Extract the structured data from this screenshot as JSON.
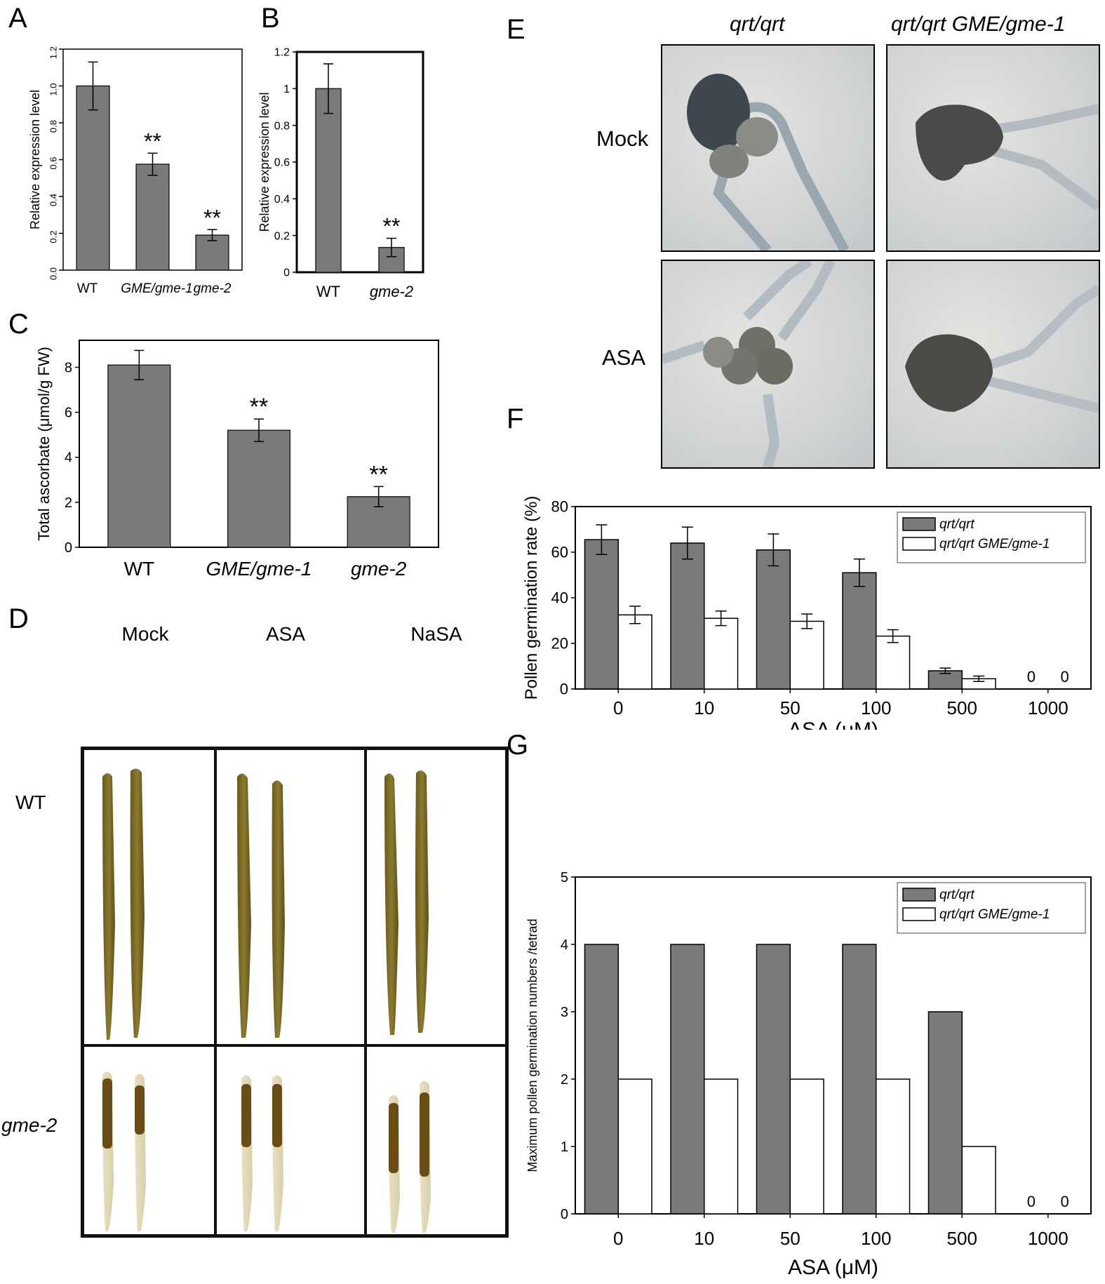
{
  "panels": {
    "A": {
      "letter": "A"
    },
    "B": {
      "letter": "B"
    },
    "C": {
      "letter": "C"
    },
    "D": {
      "letter": "D",
      "columns": [
        "Mock",
        "ASA",
        "NaSA"
      ],
      "rows": [
        "WT",
        "gme-2"
      ]
    },
    "E": {
      "letter": "E",
      "columns": [
        "qrt/qrt",
        "qrt/qrt GME/gme-1"
      ],
      "rows": [
        "Mock",
        "ASA"
      ]
    },
    "F": {
      "letter": "F"
    },
    "G": {
      "letter": "G"
    }
  },
  "chart_data": [
    {
      "id": "A",
      "type": "bar",
      "categories": [
        "WT",
        "GME/gme-1",
        "gme-2"
      ],
      "italic_categories": [
        false,
        true,
        true
      ],
      "values": [
        1.0,
        0.575,
        0.19
      ],
      "errors": [
        0.13,
        0.06,
        0.03
      ],
      "significance": [
        "",
        "**",
        "**"
      ],
      "ylabel": "Relative expression level",
      "ylim": [
        0,
        1.2
      ],
      "yticks": [
        0.0,
        0.2,
        0.4,
        0.6,
        0.8,
        1.0,
        1.2
      ],
      "ytick_labels": [
        "0.0",
        "0.2",
        "0.4",
        "0.6",
        "0.8",
        "1.0",
        "1.2"
      ],
      "bar_color": "#7a7a7a"
    },
    {
      "id": "B",
      "type": "bar",
      "categories": [
        "WT",
        "gme-2"
      ],
      "italic_categories": [
        false,
        true
      ],
      "values": [
        1.0,
        0.135
      ],
      "errors": [
        0.135,
        0.05
      ],
      "significance": [
        "",
        "**"
      ],
      "ylabel": "Relative expression level",
      "ylim": [
        0,
        1.2
      ],
      "yticks": [
        0,
        0.2,
        0.4,
        0.6,
        0.8,
        1,
        1.2
      ],
      "ytick_labels": [
        "0",
        "0.2",
        "0.4",
        "0.6",
        "0.8",
        "1",
        "1.2"
      ],
      "bar_color": "#7a7a7a"
    },
    {
      "id": "C",
      "type": "bar",
      "categories": [
        "WT",
        "GME/gme-1",
        "gme-2"
      ],
      "italic_categories": [
        false,
        true,
        true
      ],
      "values": [
        8.1,
        5.2,
        2.25
      ],
      "errors": [
        0.65,
        0.5,
        0.45
      ],
      "significance": [
        "",
        "**",
        "**"
      ],
      "ylabel": "Total ascorbate (μmol/g FW)",
      "ylim": [
        0,
        9.2
      ],
      "yticks": [
        0,
        2,
        4,
        6,
        8
      ],
      "ytick_labels": [
        "0",
        "2",
        "4",
        "6",
        "8"
      ],
      "bar_color": "#7a7a7a"
    },
    {
      "id": "F",
      "type": "bar",
      "categories": [
        "0",
        "10",
        "50",
        "100",
        "500",
        "1000"
      ],
      "xlabel": "ASA (μM)",
      "ylabel": "Pollen germination rate (%)",
      "ylim": [
        0,
        80
      ],
      "yticks": [
        0,
        20,
        40,
        60,
        80
      ],
      "ytick_labels": [
        "0",
        "20",
        "40",
        "60",
        "80"
      ],
      "series": [
        {
          "name": "qrt/qrt",
          "color": "#7a7a7a",
          "values": [
            65.5,
            64,
            61,
            51,
            8,
            0
          ],
          "errors": [
            6.5,
            7,
            7,
            6,
            1.2,
            0
          ]
        },
        {
          "name": "qrt/qrt GME/gme-1",
          "color": "#ffffff",
          "values": [
            32.5,
            31,
            29.7,
            23.2,
            4.5,
            0
          ],
          "errors": [
            3.8,
            3.2,
            3.2,
            2.8,
            1.2,
            0
          ]
        }
      ],
      "zero_labels": [
        "0",
        "0"
      ],
      "legend_position": "top-right"
    },
    {
      "id": "G",
      "type": "bar",
      "categories": [
        "0",
        "10",
        "50",
        "100",
        "500",
        "1000"
      ],
      "xlabel": "ASA (μM)",
      "ylabel": "Maximum pollen germination numbers /tetrad",
      "ylim": [
        0,
        5
      ],
      "yticks": [
        0,
        1,
        2,
        3,
        4,
        5
      ],
      "ytick_labels": [
        "0",
        "1",
        "2",
        "3",
        "4",
        "5"
      ],
      "series": [
        {
          "name": "qrt/qrt",
          "color": "#7a7a7a",
          "values": [
            4,
            4,
            4,
            4,
            3,
            0
          ]
        },
        {
          "name": "qrt/qrt GME/gme-1",
          "color": "#ffffff",
          "values": [
            2,
            2,
            2,
            2,
            1,
            0
          ]
        }
      ],
      "zero_labels": [
        "0",
        "0"
      ],
      "legend_position": "top-right"
    }
  ]
}
